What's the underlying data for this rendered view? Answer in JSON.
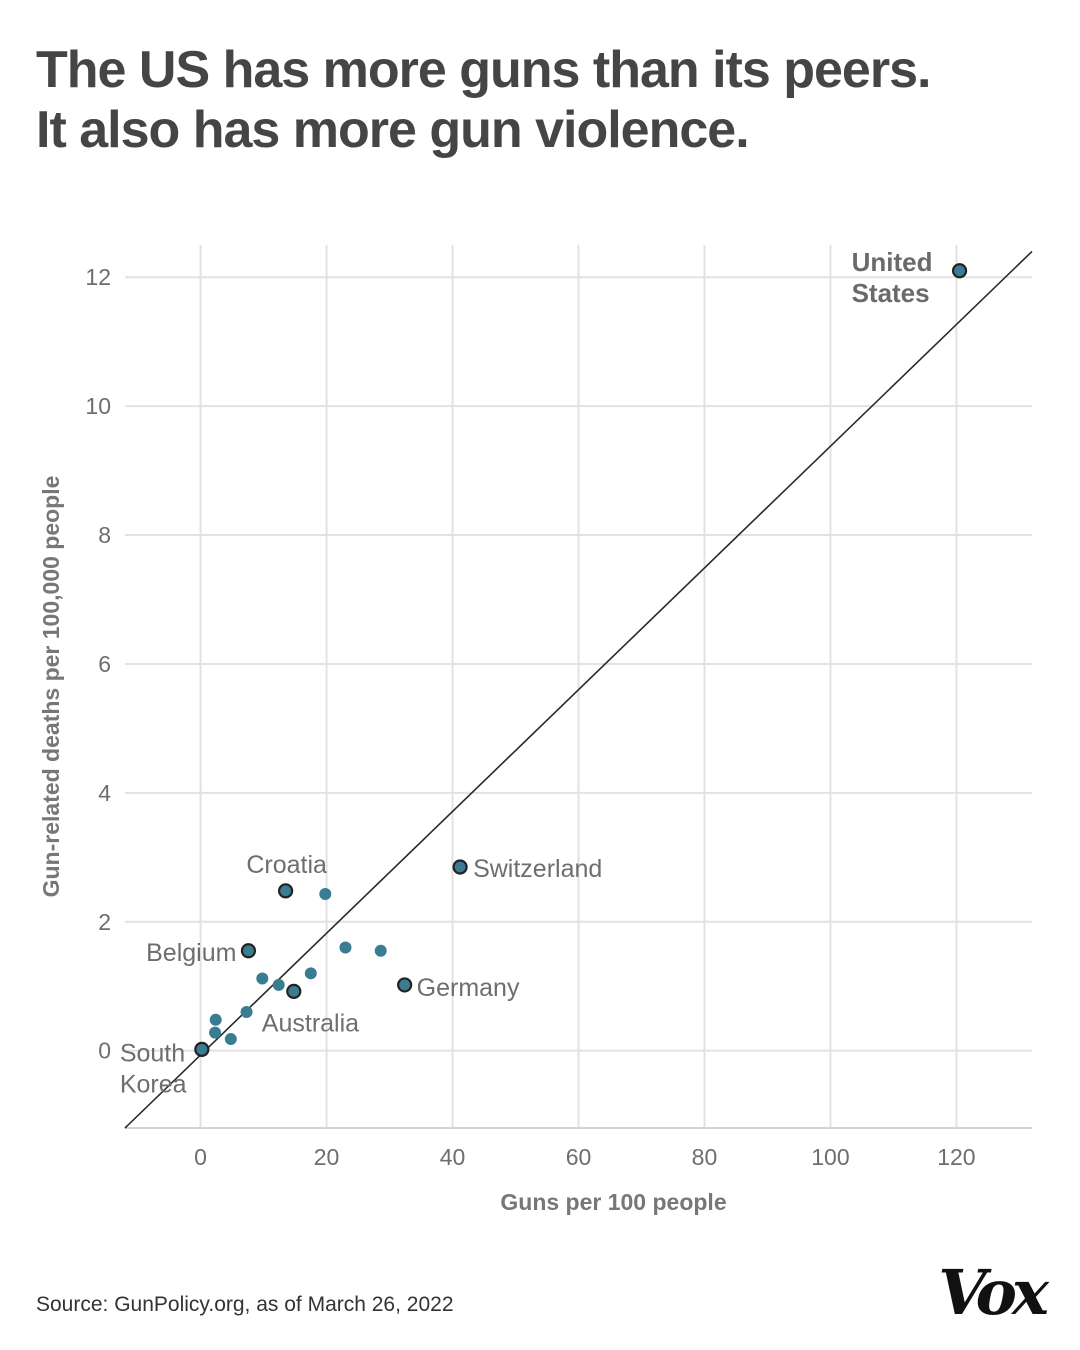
{
  "title_lines": [
    "The US has more guns than its peers.",
    "It also has more gun violence."
  ],
  "source": "Source: GunPolicy.org, as of March 26, 2022",
  "logo": "Vox",
  "colors": {
    "point_fill": "#3a7d93",
    "point_stroke": "#222222",
    "grid": "#e2e2e2",
    "text": "#6e6e6e",
    "line": "#2a2a2a"
  },
  "chart_data": {
    "type": "scatter",
    "title": "The US has more guns than its peers. It also has more gun violence.",
    "xlabel": "Guns per 100 people",
    "ylabel": "Gun-related deaths per 100,000 people",
    "xlim": [
      -12,
      132
    ],
    "ylim": [
      -1.2,
      12.5
    ],
    "xticks": [
      0,
      20,
      40,
      60,
      80,
      100,
      120
    ],
    "yticks": [
      0,
      2,
      4,
      6,
      8,
      10,
      12
    ],
    "grid": true,
    "trend_line": {
      "x": [
        -12,
        132
      ],
      "y": [
        -1.2,
        12.4
      ]
    },
    "points": [
      {
        "x": 120.5,
        "y": 12.1,
        "label": "United\nStates",
        "highlight": true,
        "bold": true
      },
      {
        "x": 41.2,
        "y": 2.85,
        "label": "Switzerland",
        "highlight": true
      },
      {
        "x": 32.4,
        "y": 1.02,
        "label": "Germany",
        "highlight": true
      },
      {
        "x": 13.5,
        "y": 2.48,
        "label": "Croatia",
        "highlight": true
      },
      {
        "x": 7.6,
        "y": 1.55,
        "label": "Belgium",
        "highlight": true
      },
      {
        "x": 14.8,
        "y": 0.92,
        "label": "Australia",
        "highlight": true
      },
      {
        "x": 0.2,
        "y": 0.02,
        "label": "South\nKorea",
        "highlight": true
      },
      {
        "x": 19.8,
        "y": 2.43,
        "label": "",
        "highlight": false
      },
      {
        "x": 23.0,
        "y": 1.6,
        "label": "",
        "highlight": false
      },
      {
        "x": 28.6,
        "y": 1.55,
        "label": "",
        "highlight": false
      },
      {
        "x": 17.5,
        "y": 1.2,
        "label": "",
        "highlight": false
      },
      {
        "x": 9.8,
        "y": 1.12,
        "label": "",
        "highlight": false
      },
      {
        "x": 12.4,
        "y": 1.02,
        "label": "",
        "highlight": false
      },
      {
        "x": 7.3,
        "y": 0.6,
        "label": "",
        "highlight": false
      },
      {
        "x": 2.4,
        "y": 0.48,
        "label": "",
        "highlight": false
      },
      {
        "x": 2.3,
        "y": 0.28,
        "label": "",
        "highlight": false
      },
      {
        "x": 4.8,
        "y": 0.18,
        "label": "",
        "highlight": false
      }
    ]
  }
}
